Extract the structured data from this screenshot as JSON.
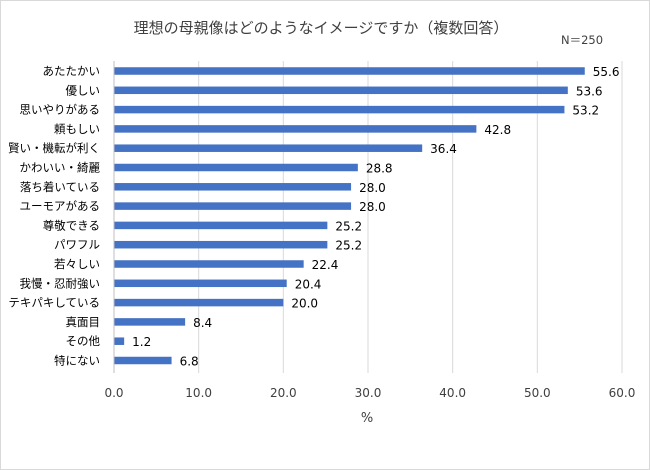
{
  "chart_data": {
    "type": "bar",
    "orientation": "horizontal",
    "title": "理想の母親像はどのようなイメージですか（複数回答）",
    "note": "N＝250",
    "xlabel": "%",
    "ylabel": "",
    "xlim": [
      0,
      60
    ],
    "xticks": [
      "0.0",
      "10.0",
      "20.0",
      "30.0",
      "40.0",
      "50.0",
      "60.0"
    ],
    "xtick_values": [
      0,
      10,
      20,
      30,
      40,
      50,
      60
    ],
    "grid": true,
    "bar_color": "#4472c4",
    "categories": [
      "あたたかい",
      "優しい",
      "思いやりがある",
      "頼もしい",
      "賢い・機転が利く",
      "かわいい・綺麗",
      "落ち着いている",
      "ユーモアがある",
      "尊敬できる",
      "パワフル",
      "若々しい",
      "我慢・忍耐強い",
      "テキパキしている",
      "真面目",
      "その他",
      "特にない"
    ],
    "values": [
      55.6,
      53.6,
      53.2,
      42.8,
      36.4,
      28.8,
      28.0,
      28.0,
      25.2,
      25.2,
      22.4,
      20.4,
      20.0,
      8.4,
      1.2,
      6.8
    ],
    "value_labels": [
      "55.6",
      "53.6",
      "53.2",
      "42.8",
      "36.4",
      "28.8",
      "28.0",
      "28.0",
      "25.2",
      "25.2",
      "22.4",
      "20.4",
      "20.0",
      "8.4",
      "1.2",
      "6.8"
    ]
  }
}
